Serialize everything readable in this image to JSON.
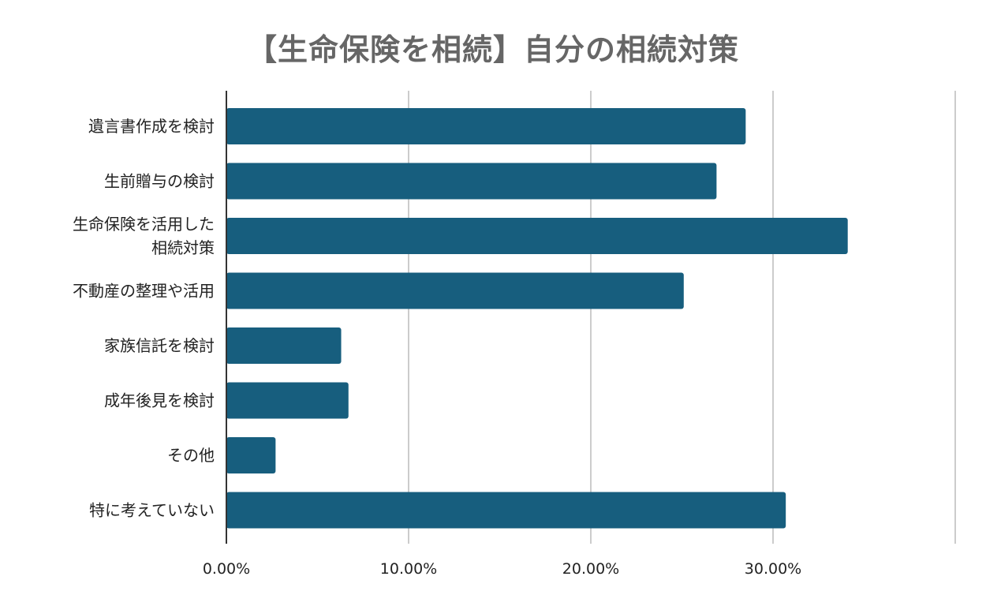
{
  "chart_data": {
    "type": "bar",
    "orientation": "horizontal",
    "title": "【生命保険を相続】自分の相続対策",
    "categories": [
      [
        "遺言書作成を検討"
      ],
      [
        "生前贈与の検討"
      ],
      [
        "生命保険を活用した",
        "相続対策"
      ],
      [
        "不動産の整理や活用"
      ],
      [
        "家族信託を検討"
      ],
      [
        "成年後見を検討"
      ],
      [
        "その他"
      ],
      [
        "特に考えていない"
      ]
    ],
    "values": [
      28.5,
      26.9,
      34.1,
      25.1,
      6.3,
      6.7,
      2.7,
      30.7
    ],
    "xlim": [
      0,
      40
    ],
    "x_ticks": [
      0,
      10,
      20,
      30
    ],
    "x_tick_labels": [
      "0.00%",
      "10.00%",
      "20.00%",
      "30.00%"
    ],
    "xlabel": "",
    "ylabel": "",
    "grid": true,
    "legend": "none",
    "bar_color": "#175e7e",
    "gridline_color": "#cccccc",
    "axis_color": "#333333"
  }
}
